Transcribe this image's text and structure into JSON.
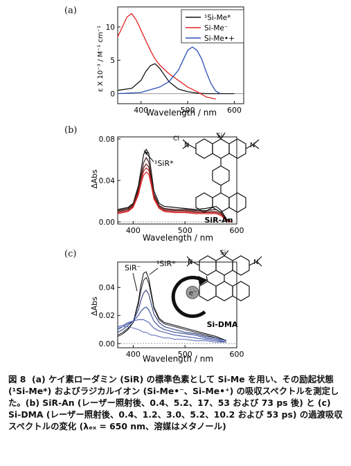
{
  "figure": {
    "panels": [
      {
        "id": "a",
        "label": "(a)",
        "chart_data": {
          "type": "line",
          "xlabel": "Wavelength / nm",
          "ylabel": "ε X 10⁻³ / M⁻¹ cm⁻¹",
          "xlim": [
            350,
            620
          ],
          "ylim": [
            -1.5,
            13
          ],
          "xticks": [
            "400",
            "500",
            "600"
          ],
          "yticks": [
            "0",
            "5",
            "10"
          ],
          "legend": "top-right",
          "series": [
            {
              "name": "¹Si-Me*",
              "color": "#111111",
              "x": [
                350,
                380,
                400,
                410,
                420,
                430,
                440,
                450,
                460,
                480,
                500,
                520,
                540,
                560,
                580,
                600
              ],
              "y": [
                0.5,
                0.8,
                2.0,
                3.3,
                4.2,
                4.5,
                3.8,
                2.8,
                1.8,
                0.7,
                0.3,
                0.1,
                0.0,
                0.0,
                0.0,
                0.0
              ]
            },
            {
              "name": "Si-Me⁻",
              "color": "#e02020",
              "x": [
                350,
                370,
                380,
                390,
                400,
                410,
                420,
                430,
                440,
                460,
                480,
                500,
                520,
                540,
                560
              ],
              "y": [
                8.5,
                11.5,
                12.0,
                11.0,
                9.5,
                8.0,
                6.5,
                5.2,
                4.3,
                3.0,
                2.0,
                1.0,
                0.3,
                -0.5,
                -0.8
              ]
            },
            {
              "name": "Si-Me•+",
              "color": "#2a4fb5",
              "x": [
                350,
                400,
                440,
                460,
                480,
                490,
                500,
                510,
                520,
                530,
                540,
                550,
                560,
                570
              ],
              "y": [
                0.0,
                0.2,
                1.0,
                1.8,
                3.5,
                5.0,
                6.5,
                7.0,
                6.5,
                5.2,
                3.2,
                1.5,
                0.4,
                0.0
              ]
            }
          ]
        }
      },
      {
        "id": "b",
        "label": "(b)",
        "annotations": [
          "¹SiR*"
        ],
        "structure": {
          "name": "SiR-An",
          "labels": [
            "Cl⁻",
            "N",
            "N",
            "Si"
          ]
        },
        "chart_data": {
          "type": "line",
          "xlabel": "Wavelength / nm",
          "ylabel": "ΔAbs",
          "xlim": [
            370,
            600
          ],
          "ylim": [
            -0.002,
            0.082
          ],
          "xticks": [
            "400",
            "500",
            "600"
          ],
          "yticks": [
            "0.00",
            "0.04",
            "0.08"
          ],
          "series": [
            {
              "color": "#111111",
              "x": [
                370,
                380,
                390,
                400,
                410,
                415,
                420,
                425,
                430,
                435,
                440,
                450,
                460,
                480,
                500,
                520,
                540,
                560,
                570,
                580,
                590
              ],
              "y": [
                0.012,
                0.013,
                0.014,
                0.018,
                0.035,
                0.05,
                0.065,
                0.07,
                0.066,
                0.048,
                0.03,
                0.018,
                0.015,
                0.014,
                0.013,
                0.012,
                0.013,
                0.015,
                0.011,
                0.003,
                0.0
              ]
            },
            {
              "color": "#3a1a1a",
              "x": [
                370,
                380,
                390,
                400,
                410,
                415,
                420,
                425,
                430,
                435,
                440,
                450,
                460,
                480,
                500,
                520,
                540,
                560,
                570,
                580,
                590
              ],
              "y": [
                0.011,
                0.012,
                0.013,
                0.017,
                0.032,
                0.045,
                0.057,
                0.062,
                0.058,
                0.043,
                0.027,
                0.016,
                0.013,
                0.012,
                0.012,
                0.011,
                0.011,
                0.012,
                0.009,
                0.002,
                0.0
              ]
            },
            {
              "color": "#6a2020",
              "x": [
                370,
                380,
                390,
                400,
                410,
                415,
                420,
                425,
                430,
                435,
                440,
                450,
                460,
                480,
                500,
                520,
                540,
                560,
                570,
                580,
                590
              ],
              "y": [
                0.01,
                0.011,
                0.012,
                0.016,
                0.03,
                0.042,
                0.052,
                0.056,
                0.053,
                0.04,
                0.025,
                0.015,
                0.012,
                0.011,
                0.011,
                0.01,
                0.01,
                0.01,
                0.008,
                0.002,
                0.0
              ]
            },
            {
              "color": "#a82424",
              "x": [
                370,
                380,
                390,
                400,
                410,
                415,
                420,
                425,
                430,
                435,
                440,
                450,
                460,
                480,
                500,
                520,
                540,
                560,
                570,
                580,
                590
              ],
              "y": [
                0.009,
                0.01,
                0.011,
                0.015,
                0.028,
                0.04,
                0.049,
                0.052,
                0.05,
                0.038,
                0.024,
                0.014,
                0.011,
                0.01,
                0.01,
                0.009,
                0.009,
                0.009,
                0.007,
                0.001,
                0.0
              ]
            },
            {
              "color": "#e02020",
              "x": [
                370,
                380,
                390,
                400,
                410,
                415,
                420,
                425,
                430,
                435,
                440,
                450,
                460,
                480,
                500,
                520,
                540,
                560,
                570,
                580,
                590
              ],
              "y": [
                0.008,
                0.009,
                0.01,
                0.014,
                0.026,
                0.037,
                0.045,
                0.048,
                0.046,
                0.035,
                0.022,
                0.013,
                0.01,
                0.009,
                0.009,
                0.008,
                0.008,
                0.008,
                0.006,
                0.001,
                0.0
              ]
            }
          ]
        }
      },
      {
        "id": "c",
        "label": "(c)",
        "annotations": [
          "SiR⁻",
          "¹SiR*",
          "e⁻"
        ],
        "structure": {
          "name": "Si-DMA",
          "labels": [
            "N",
            "N",
            "Si"
          ]
        },
        "chart_data": {
          "type": "line",
          "xlabel": "Wavelength / nm",
          "ylabel": "ΔAbs",
          "xlim": [
            370,
            600
          ],
          "ylim": [
            -0.003,
            0.058
          ],
          "xticks": [
            "400",
            "500",
            "600"
          ],
          "yticks": [
            "0.00",
            "0.02",
            "0.04"
          ],
          "series": [
            {
              "color": "#111111",
              "x": [
                370,
                380,
                390,
                400,
                410,
                415,
                420,
                425,
                430,
                435,
                440,
                450,
                460,
                470,
                480,
                500,
                520,
                540,
                560,
                580
              ],
              "y": [
                0.005,
                0.007,
                0.01,
                0.015,
                0.03,
                0.042,
                0.05,
                0.051,
                0.046,
                0.036,
                0.026,
                0.018,
                0.015,
                0.014,
                0.013,
                0.011,
                0.009,
                0.007,
                0.005,
                0.002
              ]
            },
            {
              "color": "#2a2a3a",
              "x": [
                370,
                380,
                390,
                400,
                410,
                415,
                420,
                425,
                430,
                435,
                440,
                450,
                460,
                470,
                480,
                500,
                520,
                540,
                560,
                580
              ],
              "y": [
                0.006,
                0.008,
                0.011,
                0.015,
                0.028,
                0.038,
                0.045,
                0.047,
                0.043,
                0.034,
                0.025,
                0.017,
                0.014,
                0.013,
                0.012,
                0.01,
                0.008,
                0.006,
                0.004,
                0.002
              ]
            },
            {
              "color": "#2c3a78",
              "x": [
                370,
                380,
                390,
                400,
                410,
                415,
                420,
                425,
                430,
                435,
                440,
                450,
                460,
                470,
                480,
                500,
                520,
                540,
                560,
                580
              ],
              "y": [
                0.008,
                0.01,
                0.013,
                0.016,
                0.024,
                0.031,
                0.036,
                0.038,
                0.035,
                0.028,
                0.021,
                0.015,
                0.012,
                0.011,
                0.01,
                0.008,
                0.007,
                0.005,
                0.004,
                0.002
              ]
            },
            {
              "color": "#334a9a",
              "x": [
                370,
                380,
                390,
                400,
                410,
                415,
                420,
                425,
                430,
                435,
                440,
                450,
                460,
                470,
                480,
                500,
                520,
                540,
                560,
                580
              ],
              "y": [
                0.01,
                0.012,
                0.014,
                0.016,
                0.02,
                0.023,
                0.025,
                0.026,
                0.024,
                0.02,
                0.016,
                0.012,
                0.01,
                0.009,
                0.008,
                0.007,
                0.006,
                0.004,
                0.003,
                0.001
              ]
            },
            {
              "color": "#4a5cac",
              "x": [
                370,
                380,
                390,
                400,
                410,
                415,
                420,
                425,
                430,
                435,
                440,
                450,
                460,
                470,
                480,
                500,
                520,
                540,
                560,
                580
              ],
              "y": [
                0.012,
                0.013,
                0.015,
                0.016,
                0.017,
                0.017,
                0.017,
                0.016,
                0.015,
                0.013,
                0.011,
                0.009,
                0.008,
                0.007,
                0.006,
                0.005,
                0.004,
                0.003,
                0.002,
                0.001
              ]
            },
            {
              "color": "#6674bc",
              "x": [
                370,
                380,
                390,
                400,
                410,
                415,
                420,
                425,
                430,
                435,
                440,
                450,
                460,
                470,
                480,
                500,
                520,
                540,
                560,
                580
              ],
              "y": [
                0.011,
                0.012,
                0.012,
                0.011,
                0.01,
                0.009,
                0.008,
                0.008,
                0.007,
                0.006,
                0.006,
                0.005,
                0.004,
                0.004,
                0.003,
                0.003,
                0.002,
                0.002,
                0.001,
                0.001
              ]
            }
          ]
        }
      }
    ]
  },
  "caption": {
    "label": "図 8",
    "text": "(a) ケイ素ローダミン (SiR) の標準色素として Si-Me を用い、その励起状態 (¹Si-Me*) およびラジカルイオン (Si-Me•⁻、Si-Me•⁺) の吸収スペクトルを測定した。(b) SiR-An (レーザー照射後、0.4、5.2、17、53 および 73 ps 後) と (c) Si-DMA (レーザー照射後、0.4、1.2、3.0、5.2、10.2 および 53 ps) の過渡吸収スペクトルの変化 (λₑₓ = 650 nm、溶媒はメタノール)"
  }
}
